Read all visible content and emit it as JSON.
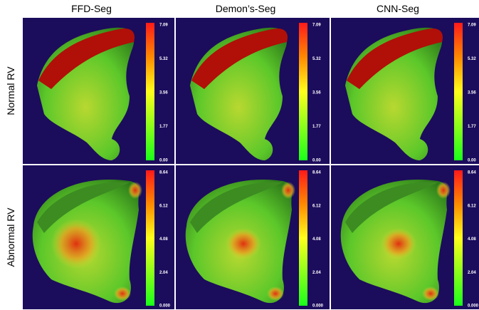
{
  "columns": [
    "FFD-Seg",
    "Demon’s-Seg",
    "CNN-Seg"
  ],
  "rows": [
    {
      "label": "Normal RV",
      "colorbar": [
        "7.09",
        "5.32",
        "3.56",
        "1.77",
        "0.00"
      ]
    },
    {
      "label": "Abnormal RV",
      "colorbar": [
        "8.64",
        "6.12",
        "4.08",
        "2.04",
        "0.000"
      ]
    }
  ]
}
